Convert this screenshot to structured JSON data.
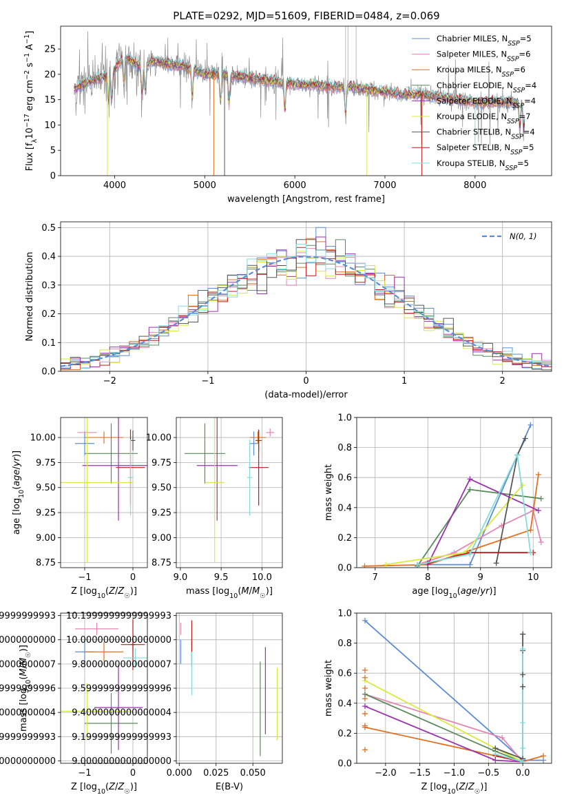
{
  "figure": {
    "title": "PLATE=0292, MJD=51609, FIBERID=0484, z=0.069"
  },
  "series": [
    {
      "name": "Chabrier MILES, N_SSP=5",
      "color": "#5b8bd6"
    },
    {
      "name": "Salpeter MILES, N_SSP=6",
      "color": "#e585b3"
    },
    {
      "name": "Kroupa MILES, N_SSP=6",
      "color": "#e07020"
    },
    {
      "name": "Chabrier ELODIE, N_SSP=4",
      "color": "#5a8a5a"
    },
    {
      "name": "Salpeter ELODIE, N_SSP=4",
      "color": "#9a2fb0"
    },
    {
      "name": "Kroupa ELODIE, N_SSP=7",
      "color": "#d8e840"
    },
    {
      "name": "Chabrier STELIB, N_SSP=4",
      "color": "#555555"
    },
    {
      "name": "Salpeter STELIB, N_SSP=5",
      "color": "#c01818"
    },
    {
      "name": "Kroupa STELIB, N_SSP=5",
      "color": "#80dcdc"
    }
  ],
  "legend_labels": {
    "spectrum": [
      [
        "Chabrier MILES, N",
        "SSP",
        "=5"
      ],
      [
        "Salpeter MILES, N",
        "SSP",
        "=6"
      ],
      [
        "Kroupa MILES, N",
        "SSP",
        "=6"
      ],
      [
        "Chabrier ELODIE, N",
        "SSP",
        "=4"
      ],
      [
        "Salpeter ELODIE, N",
        "SSP",
        "=4"
      ],
      [
        "Kroupa ELODIE, N",
        "SSP",
        "=7"
      ],
      [
        "Chabrier STELIB, N",
        "SSP",
        "=4"
      ],
      [
        "Salpeter STELIB, N",
        "SSP",
        "=5"
      ],
      [
        "Kroupa STELIB, N",
        "SSP",
        "=5"
      ]
    ],
    "histogram": "N(0, 1)"
  },
  "chart_data": [
    {
      "id": "spectrum",
      "type": "line",
      "xlabel": "wavelength [Angstrom, rest frame]",
      "ylabel": "Flux [f_λ 10^-17 erg cm^-2 s^-1 A^-1]",
      "xlim": [
        3400,
        8850
      ],
      "ylim": [
        0,
        29.5
      ],
      "xticks": [
        4000,
        5000,
        6000,
        7000,
        8000
      ],
      "yticks": [
        0,
        5,
        10,
        15,
        20,
        25
      ],
      "grid": false,
      "legend": "top-right",
      "continuum": {
        "x": [
          3550,
          3600,
          3700,
          3800,
          3900,
          4000,
          4100,
          4200,
          4300,
          4400,
          4500,
          4600,
          4800,
          5000,
          5200,
          5400,
          5600,
          5800,
          6000,
          6200,
          6400,
          6600,
          6800,
          7000,
          7200,
          7400,
          7600,
          7800,
          8000,
          8200,
          8400,
          8550
        ],
        "y": [
          17,
          17.5,
          18.5,
          19,
          19.5,
          21,
          23.5,
          22.5,
          21.5,
          22.5,
          22.5,
          22,
          21.5,
          20,
          20,
          19.5,
          19,
          18.5,
          18,
          18,
          17.5,
          17.5,
          17,
          16.5,
          16,
          16,
          15.5,
          15,
          14.5,
          14.5,
          14.5,
          14.5
        ]
      },
      "absorption_lines": [
        3934,
        3969,
        4102,
        4304,
        4341,
        4861,
        5175,
        5270,
        5890,
        6563,
        8498,
        8542
      ],
      "spikes": [
        {
          "x": 3920,
          "y": 0,
          "series": 5
        },
        {
          "x": 5100,
          "y": 0,
          "series": 2
        },
        {
          "x": 5220,
          "y": 0,
          "series": 6
        },
        {
          "x": 6800,
          "y": 0,
          "series": 5
        },
        {
          "x": 7410,
          "y": 0,
          "series": 7
        },
        {
          "x": 8000,
          "y": 5,
          "series": 8
        }
      ]
    },
    {
      "id": "residual_histogram",
      "type": "line",
      "xlabel": "(data-model)/error",
      "ylabel": "Normed distribution",
      "xlim": [
        -2.5,
        2.5
      ],
      "ylim": [
        0,
        0.52
      ],
      "xticks": [
        -2,
        -1,
        0,
        1,
        2
      ],
      "yticks": [
        0.0,
        0.1,
        0.2,
        0.3,
        0.4,
        0.5
      ],
      "bin_width": 0.1,
      "grid": true,
      "legend": "top-right",
      "reference_curve": {
        "name": "N(0, 1)",
        "mean": 0,
        "sigma": 1,
        "style": "dashed",
        "color": "#5b8bd6"
      }
    },
    {
      "id": "age_vs_Z",
      "type": "scatter",
      "xlabel": "Z [log10(Z/Z☉)]",
      "ylabel": "age [log10(age/yr)]",
      "xlim": [
        -1.5,
        0.3
      ],
      "ylim": [
        8.7,
        10.2
      ],
      "xticks": [
        -1,
        0
      ],
      "yticks": [
        8.75,
        9.0,
        9.25,
        9.5,
        9.75,
        10.0
      ],
      "grid": true,
      "errorbars": [
        {
          "series": 0,
          "x": -1.0,
          "xerr": 0.2,
          "y": 9.94,
          "yerr": 0.12
        },
        {
          "series": 1,
          "x": -0.95,
          "xerr": 0.2,
          "y": 10.05,
          "yerr": 0.04
        },
        {
          "series": 2,
          "x": -0.6,
          "xerr": 0.4,
          "y": 10.0,
          "yerr": 0.06
        },
        {
          "series": 3,
          "x": -0.45,
          "xerr": 0.55,
          "y": 9.84,
          "yerr": 0.3
        },
        {
          "series": 4,
          "x": -0.3,
          "xerr": 0.75,
          "y": 9.72,
          "yerr": 0.55
        },
        {
          "series": 5,
          "x": -0.95,
          "xerr": 0.95,
          "y": 9.55,
          "yerr": 0.8
        },
        {
          "series": 6,
          "x": 0.0,
          "xerr": 0.05,
          "y": 9.97,
          "yerr": 0.1
        },
        {
          "series": 7,
          "x": -0.05,
          "xerr": 0.3,
          "y": 9.7,
          "yerr": 0.38
        },
        {
          "series": 8,
          "x": -0.05,
          "xerr": 0.05,
          "y": 9.6,
          "yerr": 0.38
        }
      ]
    },
    {
      "id": "age_vs_mass",
      "type": "scatter",
      "xlabel": "mass [log10(M/M☉)]",
      "ylabel": "",
      "xlim": [
        8.95,
        10.25
      ],
      "ylim": [
        8.7,
        10.2
      ],
      "xticks": [
        9.0,
        9.5,
        10.0
      ],
      "yticks": [
        8.75,
        9.0,
        9.25,
        9.5,
        9.75,
        10.0
      ],
      "grid": true,
      "errorbars": [
        {
          "series": 0,
          "x": 9.9,
          "xerr": 0.05,
          "y": 9.94,
          "yerr": 0.12
        },
        {
          "series": 1,
          "x": 10.1,
          "xerr": 0.05,
          "y": 10.05,
          "yerr": 0.04
        },
        {
          "series": 2,
          "x": 9.95,
          "xerr": 0.1,
          "y": 10.0,
          "yerr": 0.06
        },
        {
          "series": 3,
          "x": 9.3,
          "xerr": 0.25,
          "y": 9.84,
          "yerr": 0.3
        },
        {
          "series": 4,
          "x": 9.45,
          "xerr": 0.25,
          "y": 9.72,
          "yerr": 0.55
        },
        {
          "series": 5,
          "x": 9.42,
          "xerr": 0.12,
          "y": 9.55,
          "yerr": 0.8
        },
        {
          "series": 6,
          "x": 9.96,
          "xerr": 0.04,
          "y": 9.97,
          "yerr": 0.1
        },
        {
          "series": 7,
          "x": 9.96,
          "xerr": 0.12,
          "y": 9.7,
          "yerr": 0.38
        },
        {
          "series": 8,
          "x": 9.85,
          "xerr": 0.03,
          "y": 9.6,
          "yerr": 0.38
        }
      ]
    },
    {
      "id": "massweight_vs_age",
      "type": "line",
      "xlabel": "age [log10(age/yr)]",
      "ylabel": "mass weight",
      "xlim": [
        6.65,
        10.35
      ],
      "ylim": [
        0,
        1.0
      ],
      "xticks": [
        7,
        8,
        9,
        10
      ],
      "yticks": [
        0.0,
        0.2,
        0.4,
        0.6,
        0.8,
        1.0
      ],
      "grid": true,
      "lines": [
        {
          "series": 0,
          "x": [
            7.8,
            8.8,
            9.7,
            9.95
          ],
          "y": [
            0.02,
            0.02,
            0.75,
            0.95
          ]
        },
        {
          "series": 1,
          "x": [
            7.8,
            8.5,
            9.4,
            10.0,
            10.15
          ],
          "y": [
            0.02,
            0.1,
            0.28,
            0.38,
            0.17
          ]
        },
        {
          "series": 2,
          "x": [
            6.8,
            8.0,
            9.95,
            10.1
          ],
          "y": [
            0.01,
            0.02,
            0.25,
            0.62
          ]
        },
        {
          "series": 3,
          "x": [
            7.8,
            8.8,
            10.15
          ],
          "y": [
            0.01,
            0.52,
            0.46
          ]
        },
        {
          "series": 4,
          "x": [
            8.0,
            8.8,
            10.1
          ],
          "y": [
            0.02,
            0.59,
            0.38
          ]
        },
        {
          "series": 5,
          "x": [
            7.2,
            8.7,
            9.8
          ],
          "y": [
            0.02,
            0.1,
            0.55
          ]
        },
        {
          "series": 6,
          "x": [
            9.3,
            9.7,
            9.85
          ],
          "y": [
            0.03,
            0.75,
            0.86
          ]
        },
        {
          "series": 7,
          "x": [
            8.0,
            8.8,
            10.0
          ],
          "y": [
            0.03,
            0.1,
            0.1
          ]
        },
        {
          "series": 8,
          "x": [
            7.8,
            8.8,
            9.7,
            9.95
          ],
          "y": [
            0.02,
            0.09,
            0.75,
            0.1
          ]
        }
      ]
    },
    {
      "id": "mass_vs_Z",
      "type": "scatter",
      "xlabel": "Z [log10(Z/Z☉)]",
      "ylabel": "mass [log10(M/M☉)]",
      "xlim": [
        -1.5,
        0.3
      ],
      "ylim": [
        8.98,
        10.22
      ],
      "xticks": [
        -1,
        0
      ],
      "yticks": [
        9.0,
        9.2,
        9.4,
        9.6,
        9.8,
        10.0,
        10.2
      ],
      "grid": true,
      "errorbars": [
        {
          "series": 0,
          "x": -1.0,
          "xerr": 0.2,
          "y": 9.9,
          "yerr": 0.1
        },
        {
          "series": 1,
          "x": -0.75,
          "xerr": 0.45,
          "y": 10.09,
          "yerr": 0.05
        },
        {
          "series": 2,
          "x": -0.6,
          "xerr": 0.4,
          "y": 9.9,
          "yerr": 0.08
        },
        {
          "series": 3,
          "x": -0.45,
          "xerr": 0.55,
          "y": 9.31,
          "yerr": 0.25
        },
        {
          "series": 4,
          "x": -0.3,
          "xerr": 0.5,
          "y": 9.44,
          "yerr": 0.35
        },
        {
          "series": 5,
          "x": -0.95,
          "xerr": 0.95,
          "y": 9.41,
          "yerr": 0.23
        },
        {
          "series": 6,
          "x": 0.0,
          "xerr": 0.05,
          "y": 9.96,
          "yerr": 0.05
        },
        {
          "series": 7,
          "x": 0.0,
          "xerr": 0.25,
          "y": 9.96,
          "yerr": 0.21
        },
        {
          "series": 8,
          "x": 0.05,
          "xerr": 0.25,
          "y": 9.85,
          "yerr": 0.08
        }
      ]
    },
    {
      "id": "mass_vs_EBV",
      "type": "scatter",
      "xlabel": "E(B-V)",
      "ylabel": "",
      "xlim": [
        -0.002,
        0.07
      ],
      "ylim": [
        8.98,
        10.22
      ],
      "xticks": [
        0.0,
        0.025,
        0.05
      ],
      "yticks": [
        9.0,
        9.2,
        9.4,
        9.6,
        9.8,
        10.0,
        10.2
      ],
      "grid": true,
      "errorbars": [
        {
          "series": 0,
          "x": 0.001,
          "xerr": 0,
          "y": 9.9,
          "yerr": 0.1
        },
        {
          "series": 1,
          "x": 0.001,
          "xerr": 0,
          "y": 10.09,
          "yerr": 0.05
        },
        {
          "series": 2,
          "x": 0.0085,
          "xerr": 0,
          "y": 9.9,
          "yerr": 0.08
        },
        {
          "series": 3,
          "x": 0.055,
          "xerr": 0,
          "y": 9.43,
          "yerr": 0.39
        },
        {
          "series": 4,
          "x": 0.0585,
          "xerr": 0,
          "y": 9.58,
          "yerr": 0.36
        },
        {
          "series": 5,
          "x": 0.0665,
          "xerr": 0,
          "y": 9.47,
          "yerr": 0.3
        },
        {
          "series": 6,
          "x": 0.0085,
          "xerr": 0,
          "y": 9.98,
          "yerr": 0.03
        },
        {
          "series": 7,
          "x": 0.0085,
          "xerr": 0,
          "y": 9.97,
          "yerr": 0.19
        },
        {
          "series": 8,
          "x": 0.0085,
          "xerr": 0,
          "y": 9.72,
          "yerr": 0.18
        }
      ]
    },
    {
      "id": "massweight_vs_Z",
      "type": "line",
      "xlabel": "Z [log10(Z/Z☉)]",
      "ylabel": "mass weight",
      "xlim": [
        -2.42,
        0.42
      ],
      "ylim": [
        0,
        1.0
      ],
      "xticks": [
        -2.0,
        -1.5,
        -1.0,
        -0.5,
        0.0
      ],
      "yticks": [
        0.0,
        0.2,
        0.4,
        0.6,
        0.8,
        1.0
      ],
      "grid": true,
      "lines": [
        {
          "series": 0,
          "x": [
            -2.3,
            0.0,
            0.3
          ],
          "y": [
            0.95,
            0.02,
            0.02
          ]
        },
        {
          "series": 1,
          "x": [
            -2.3,
            -0.3,
            0.0
          ],
          "y": [
            0.46,
            0.17,
            0.01
          ]
        },
        {
          "series": 2,
          "x": [
            -2.3,
            0.0,
            0.3
          ],
          "y": [
            0.24,
            0.01,
            0.05
          ]
        },
        {
          "series": 3,
          "x": [
            -2.3,
            -0.4,
            0.0
          ],
          "y": [
            0.46,
            0.08,
            0.01
          ]
        },
        {
          "series": 4,
          "x": [
            -2.3,
            -0.4,
            0.0
          ],
          "y": [
            0.38,
            0.02,
            0.01
          ]
        },
        {
          "series": 5,
          "x": [
            -2.3,
            -0.4,
            0.0
          ],
          "y": [
            0.55,
            0.1,
            0.01
          ]
        },
        {
          "series": 6,
          "x": [
            -0.4,
            0.0,
            0.0
          ],
          "y": [
            0.1,
            0.03,
            0.86
          ]
        },
        {
          "series": 7,
          "x": [
            -0.4,
            0.0
          ],
          "y": [
            0.05,
            0.01
          ]
        },
        {
          "series": 8,
          "x": [
            -0.4,
            0.0,
            0.0
          ],
          "y": [
            0.06,
            0.01,
            0.76
          ]
        }
      ],
      "vertical_ticks": [
        {
          "series": 2,
          "x": -2.3,
          "y": [
            0.09,
            0.25,
            0.33,
            0.43,
            0.5,
            0.57,
            0.62
          ]
        },
        {
          "series": 6,
          "x": 0.0,
          "y": [
            0.03,
            0.51,
            0.59,
            0.75,
            0.86
          ]
        },
        {
          "series": 8,
          "x": 0.0,
          "y": [
            0.01,
            0.1,
            0.27,
            0.76
          ]
        }
      ]
    }
  ]
}
